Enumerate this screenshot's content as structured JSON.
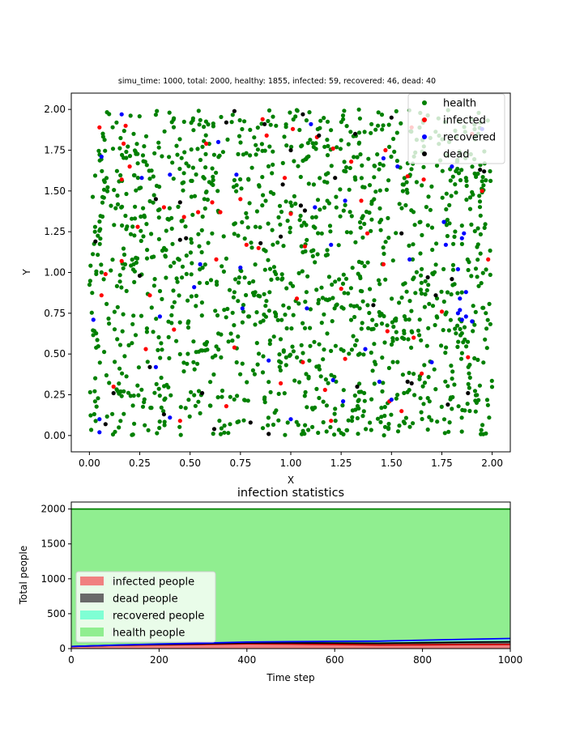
{
  "chart_data": [
    {
      "type": "scatter",
      "title": "simu_time: 1000, total: 2000, healthy: 1855, infected: 59, recovered: 46, dead: 40",
      "xlabel": "X",
      "ylabel": "Y",
      "xlim": [
        -0.09,
        2.09
      ],
      "ylim": [
        -0.1,
        2.1
      ],
      "xticks": [
        "0.00",
        "0.25",
        "0.50",
        "0.75",
        "1.00",
        "1.25",
        "1.50",
        "1.75",
        "2.00"
      ],
      "yticks": [
        "0.00",
        "0.25",
        "0.50",
        "0.75",
        "1.00",
        "1.25",
        "1.50",
        "1.75",
        "2.00"
      ],
      "grid": false,
      "legend_position": "top-right",
      "series": [
        {
          "name": "health",
          "color": "#008000",
          "count": 1855
        },
        {
          "name": "infected",
          "color": "#ff0000",
          "count": 59,
          "points": [
            [
              0.05,
              1.89
            ],
            [
              0.06,
              0.86
            ],
            [
              0.08,
              0.99
            ],
            [
              0.16,
              1.57
            ],
            [
              0.17,
              1.79
            ],
            [
              0.18,
              1.9
            ],
            [
              0.16,
              1.07
            ],
            [
              0.2,
              1.65
            ],
            [
              0.24,
              1.28
            ],
            [
              0.28,
              0.53
            ],
            [
              0.3,
              0.86
            ],
            [
              0.37,
              1.4
            ],
            [
              0.45,
              0.09
            ],
            [
              0.47,
              1.34
            ],
            [
              0.54,
              1.37
            ],
            [
              0.58,
              1.79
            ],
            [
              0.61,
              1.43
            ],
            [
              0.65,
              1.37
            ],
            [
              0.63,
              1.08
            ],
            [
              0.72,
              0.54
            ],
            [
              0.75,
              1.45
            ],
            [
              0.78,
              1.17
            ],
            [
              0.84,
              1.15
            ],
            [
              0.86,
              1.94
            ],
            [
              0.88,
              1.84
            ],
            [
              0.97,
              1.58
            ],
            [
              1.0,
              1.36
            ],
            [
              1.01,
              1.88
            ],
            [
              1.03,
              0.84
            ],
            [
              1.06,
              0.45
            ],
            [
              1.07,
              1.16
            ],
            [
              1.13,
              1.83
            ],
            [
              1.17,
              0.28
            ],
            [
              1.2,
              0.09
            ],
            [
              1.21,
              1.76
            ],
            [
              1.27,
              0.47
            ],
            [
              1.3,
              1.68
            ],
            [
              1.35,
              1.44
            ],
            [
              1.38,
              1.24
            ],
            [
              1.47,
              1.75
            ],
            [
              1.48,
              0.64
            ],
            [
              1.49,
              0.21
            ],
            [
              1.58,
              1.59
            ],
            [
              1.6,
              1.89
            ],
            [
              1.61,
              0.6
            ],
            [
              1.65,
              0.38
            ],
            [
              1.66,
              1.57
            ],
            [
              1.75,
              0.76
            ],
            [
              1.9,
              1.85
            ],
            [
              1.95,
              1.5
            ],
            [
              1.98,
              1.08
            ],
            [
              1.46,
              1.05
            ],
            [
              1.25,
              0.9
            ],
            [
              0.42,
              0.65
            ],
            [
              0.95,
              0.32
            ],
            [
              1.88,
              0.48
            ],
            [
              0.12,
              0.3
            ],
            [
              1.55,
              0.15
            ],
            [
              0.68,
              0.18
            ]
          ]
        },
        {
          "name": "recovered",
          "color": "#0000ff",
          "count": 46,
          "points": [
            [
              0.02,
              0.71
            ],
            [
              0.05,
              0.02
            ],
            [
              0.06,
              1.71
            ],
            [
              0.05,
              0.1
            ],
            [
              0.16,
              1.97
            ],
            [
              0.26,
              1.58
            ],
            [
              0.33,
              0.42
            ],
            [
              0.35,
              0.73
            ],
            [
              0.4,
              0.11
            ],
            [
              0.52,
              0.91
            ],
            [
              0.64,
              1.8
            ],
            [
              0.73,
              1.6
            ],
            [
              0.75,
              1.03
            ],
            [
              0.76,
              0.78
            ],
            [
              0.89,
              0.46
            ],
            [
              1.08,
              0.78
            ],
            [
              1.1,
              1.91
            ],
            [
              1.2,
              1.17
            ],
            [
              1.21,
              0.34
            ],
            [
              1.26,
              0.21
            ],
            [
              1.27,
              1.44
            ],
            [
              1.37,
              0.53
            ],
            [
              1.44,
              0.33
            ],
            [
              1.46,
              1.7
            ],
            [
              1.5,
              0.22
            ],
            [
              1.53,
              1.65
            ],
            [
              1.59,
              1.08
            ],
            [
              1.76,
              1.31
            ],
            [
              1.77,
              1.17
            ],
            [
              1.8,
              1.65
            ],
            [
              1.83,
              1.02
            ],
            [
              1.84,
              0.84
            ],
            [
              1.85,
              0.71
            ],
            [
              1.87,
              0.73
            ],
            [
              1.87,
              0.88
            ],
            [
              1.9,
              0.7
            ],
            [
              1.85,
              1.21
            ],
            [
              1.86,
              1.24
            ],
            [
              1.83,
              0.75
            ],
            [
              1.84,
              0.77
            ],
            [
              1.95,
              1.88
            ],
            [
              0.4,
              1.6
            ],
            [
              1.0,
              0.1
            ],
            [
              1.7,
              0.45
            ],
            [
              0.55,
              1.05
            ],
            [
              1.12,
              1.4
            ]
          ]
        },
        {
          "name": "dead",
          "color": "#000000",
          "count": 40,
          "points": [
            [
              0.03,
              1.19
            ],
            [
              0.08,
              0.07
            ],
            [
              0.3,
              0.42
            ],
            [
              0.33,
              1.45
            ],
            [
              0.37,
              0.13
            ],
            [
              0.45,
              1.43
            ],
            [
              0.48,
              1.21
            ],
            [
              0.45,
              1.2
            ],
            [
              0.68,
              1.92
            ],
            [
              0.72,
              1.99
            ],
            [
              0.85,
              1.18
            ],
            [
              0.87,
              1.91
            ],
            [
              0.89,
              0.01
            ],
            [
              0.96,
              1.54
            ],
            [
              1.0,
              1.75
            ],
            [
              1.05,
              1.41
            ],
            [
              1.07,
              1.38
            ],
            [
              1.06,
              1.97
            ],
            [
              1.14,
              1.84
            ],
            [
              1.32,
              1.85
            ],
            [
              1.33,
              0.3
            ],
            [
              1.41,
              0.8
            ],
            [
              1.55,
              1.24
            ],
            [
              1.58,
              0.33
            ],
            [
              1.6,
              0.32
            ],
            [
              1.68,
              0.97
            ],
            [
              1.72,
              0.86
            ],
            [
              1.78,
              0.19
            ],
            [
              1.8,
              0.96
            ],
            [
              1.88,
              0.26
            ],
            [
              1.94,
              1.63
            ],
            [
              1.96,
              1.62
            ],
            [
              0.8,
              0.08
            ],
            [
              0.25,
              0.98
            ],
            [
              0.56,
              0.26
            ],
            [
              1.22,
              1.58
            ],
            [
              0.12,
              0.26
            ],
            [
              1.5,
              1.95
            ],
            [
              0.95,
              1.22
            ],
            [
              0.62,
              0.04
            ]
          ]
        }
      ]
    },
    {
      "type": "area",
      "title": "infection statistics",
      "xlabel": "Time step",
      "ylabel": "Total people",
      "xlim": [
        0,
        1000
      ],
      "ylim": [
        0,
        2100
      ],
      "xticks": [
        "0",
        "200",
        "400",
        "600",
        "800",
        "1000"
      ],
      "yticks": [
        "0",
        "500",
        "1000",
        "1500",
        "2000"
      ],
      "legend_position": "lower-left",
      "stacked": true,
      "x": [
        0,
        100,
        200,
        300,
        400,
        500,
        600,
        700,
        800,
        900,
        1000
      ],
      "series": [
        {
          "name": "infected people",
          "color": "#f08080",
          "line_color": "#cc0000",
          "values": [
            30,
            45,
            55,
            60,
            68,
            65,
            60,
            52,
            55,
            58,
            59
          ]
        },
        {
          "name": "dead people",
          "color": "#696969",
          "line_color": "#000000",
          "values": [
            0,
            2,
            5,
            8,
            12,
            16,
            20,
            25,
            30,
            35,
            40
          ]
        },
        {
          "name": "recovered people",
          "color": "#7fffd4",
          "line_color": "#0000ff",
          "values": [
            0,
            3,
            6,
            10,
            14,
            19,
            24,
            30,
            36,
            41,
            46
          ]
        },
        {
          "name": "health people",
          "color": "#90ee90",
          "line_color": "#008000",
          "values": [
            1970,
            1950,
            1934,
            1922,
            1906,
            1900,
            1896,
            1893,
            1879,
            1866,
            1855
          ]
        }
      ]
    }
  ]
}
